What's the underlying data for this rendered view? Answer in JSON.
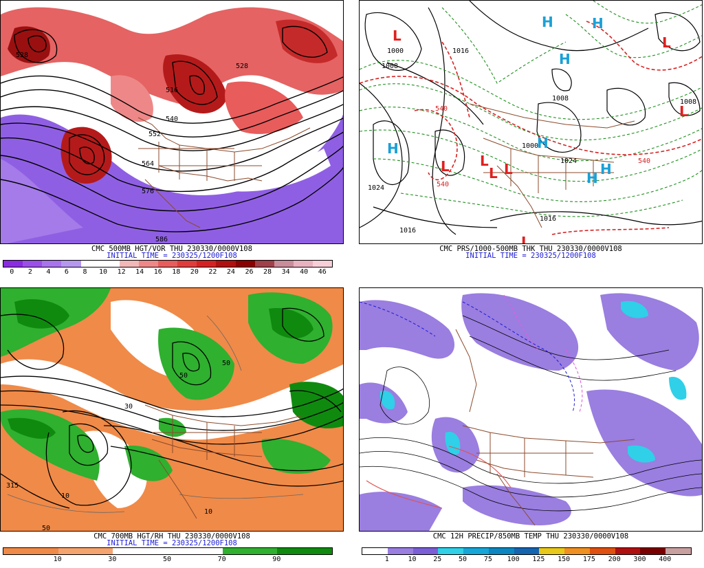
{
  "panels": {
    "vort": {
      "caption": "CMC 500MB HGT/VOR THU 230330/0000V108",
      "init": "INITIAL TIME = 230325/1200F108",
      "colors": [
        "#8a2be2",
        "#9b4fe8",
        "#a873ec",
        "#b597f0",
        "#ffffff",
        "#ffffff",
        "#f2b7b7",
        "#ee8888",
        "#e85c5c",
        "#e03c3c",
        "#d42222",
        "#b01010",
        "#8b0000",
        "#a0404a",
        "#c98c9a",
        "#e8b2c0",
        "#f6cfd8"
      ],
      "ticks": [
        "0",
        "2",
        "4",
        "6",
        "8",
        "10",
        "12",
        "14",
        "16",
        "18",
        "20",
        "22",
        "24",
        "26",
        "28",
        "34",
        "40",
        "46"
      ],
      "labels": [
        "528",
        "516",
        "528",
        "540",
        "552",
        "564",
        "576",
        "586"
      ]
    },
    "pres": {
      "caption": "CMC PRS/1000-500MB THK THU 230330/0000V108",
      "init": "INITIAL TIME = 230325/1200F108",
      "centers": [
        {
          "t": "L",
          "kind": "low"
        },
        {
          "t": "L",
          "kind": "low"
        },
        {
          "t": "L",
          "kind": "low"
        },
        {
          "t": "L",
          "kind": "low"
        },
        {
          "t": "L",
          "kind": "low"
        },
        {
          "t": "L",
          "kind": "low"
        },
        {
          "t": "L",
          "kind": "low"
        },
        {
          "t": "L",
          "kind": "low"
        },
        {
          "t": "H",
          "kind": "high"
        },
        {
          "t": "H",
          "kind": "high"
        },
        {
          "t": "H",
          "kind": "high"
        },
        {
          "t": "H",
          "kind": "high"
        },
        {
          "t": "H",
          "kind": "high"
        },
        {
          "t": "H",
          "kind": "high"
        },
        {
          "t": "H",
          "kind": "high"
        }
      ],
      "labels": [
        "1000",
        "1008",
        "1016",
        "1024",
        "1016",
        "1008",
        "1024",
        "1008",
        "1000",
        "540",
        "540",
        "540",
        "1016"
      ]
    },
    "rh": {
      "caption": "CMC 700MB HGT/RH THU 230330/0000V108",
      "init": "INITIAL TIME = 230325/1200F108",
      "colors": [
        "#f08a48",
        "#f5a470",
        "#ffffff",
        "#ffffff",
        "#2fb02f",
        "#0f8a0f"
      ],
      "ticks": [
        "10",
        "30",
        "50",
        "70",
        "90"
      ],
      "labels": [
        "315",
        "50",
        "10",
        "10",
        "50",
        "30",
        "50"
      ]
    },
    "precip": {
      "caption": "CMC 12H PRECIP/850MB TEMP THU 230330/0000V108",
      "colors": [
        "#ffffff",
        "#9a7ee0",
        "#7b5fd6",
        "#2fd0e8",
        "#16a6d8",
        "#0c86c0",
        "#1464b0",
        "#e8c81a",
        "#f09020",
        "#e05010",
        "#b01010",
        "#7a0000",
        "#c8a0a0"
      ],
      "ticks": [
        "1",
        "10",
        "25",
        "50",
        "75",
        "100",
        "125",
        "150",
        "175",
        "200",
        "300",
        "400"
      ]
    }
  }
}
